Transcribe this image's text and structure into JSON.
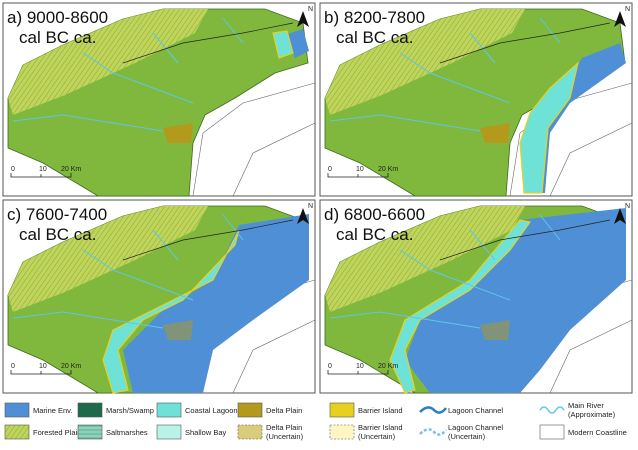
{
  "panels": [
    {
      "label": "a) 9000-8600",
      "sublabel": "cal BC ca."
    },
    {
      "label": "b) 8200-7800",
      "sublabel": "cal BC ca."
    },
    {
      "label": "c) 7600-7400",
      "sublabel": "cal BC ca."
    },
    {
      "label": "d) 6800-6600",
      "sublabel": "cal BC ca."
    }
  ],
  "scale_bar": [
    "0",
    "10",
    "20 Km"
  ],
  "north": "N",
  "legend": [
    {
      "name": "Marine Env.",
      "color": "#4f8fd6"
    },
    {
      "name": "Marsh/Swamp",
      "color": "#1d6b4c"
    },
    {
      "name": "Coastal Lagoon",
      "color": "#6fe2d8"
    },
    {
      "name": "Delta Plain",
      "color": "#b39a1c"
    },
    {
      "name": "Barrier Island",
      "color": "#e6d21e"
    },
    {
      "name": "Lagoon Channel",
      "color": "#2a7fc4"
    },
    {
      "name": "Main River (Approximate)",
      "color": "#5ac8e8"
    },
    {
      "name": "Forested Plain",
      "color": "#c9d95a"
    },
    {
      "name": "Saltmarshes",
      "color": "#7fcab2"
    },
    {
      "name": "Shallow Bay",
      "color": "#b8f2e8"
    },
    {
      "name": "Delta Plain (Uncertain)",
      "color": "#d9cd7c"
    },
    {
      "name": "Barrier Island (Uncertain)",
      "color": "#fff6c4"
    },
    {
      "name": "Lagoon Channel (Uncertain)",
      "color": "#7cc0ea"
    },
    {
      "name": "Modern Coastline",
      "color": "#ffffff"
    }
  ]
}
